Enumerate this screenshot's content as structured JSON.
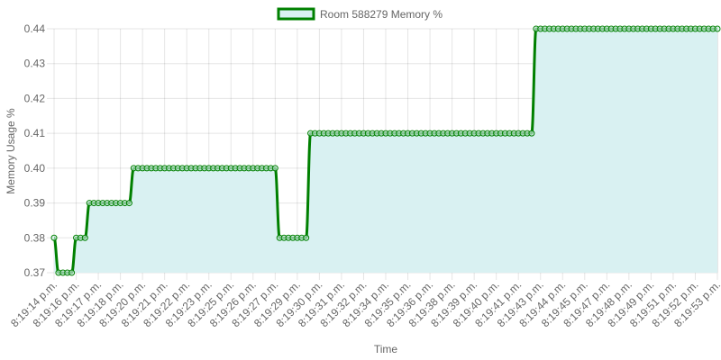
{
  "chart_data": {
    "type": "line",
    "title": "",
    "legend": {
      "label": "Room 588279 Memory %",
      "position": "top"
    },
    "xlabel": "Time",
    "ylabel": "Memory Usage %",
    "ylim": [
      0.37,
      0.44
    ],
    "yticks": [
      "0.37",
      "0.38",
      "0.39",
      "0.40",
      "0.41",
      "0.42",
      "0.43",
      "0.44"
    ],
    "grid": true,
    "x_tick_labels": [
      "8:19:14 p.m.",
      "8:19:16 p.m.",
      "8:19:17 p.m.",
      "8:19:18 p.m.",
      "8:19:20 p.m.",
      "8:19:21 p.m.",
      "8:19:22 p.m.",
      "8:19:23 p.m.",
      "8:19:25 p.m.",
      "8:19:26 p.m.",
      "8:19:27 p.m.",
      "8:19:29 p.m.",
      "8:19:30 p.m.",
      "8:19:31 p.m.",
      "8:19:32 p.m.",
      "8:19:34 p.m.",
      "8:19:35 p.m.",
      "8:19:36 p.m.",
      "8:19:38 p.m.",
      "8:19:39 p.m.",
      "8:19:40 p.m.",
      "8:19:41 p.m.",
      "8:19:43 p.m.",
      "8:19:44 p.m.",
      "8:19:45 p.m.",
      "8:19:47 p.m.",
      "8:19:48 p.m.",
      "8:19:49 p.m.",
      "8:19:51 p.m.",
      "8:19:52 p.m.",
      "8:19:53 p.m."
    ],
    "series": [
      {
        "name": "Room 588279 Memory %",
        "line_color": "#008000",
        "fill_color": "#d9f1f2",
        "value_runs": [
          [
            0.38,
            1
          ],
          [
            0.37,
            4
          ],
          [
            0.38,
            3
          ],
          [
            0.39,
            10
          ],
          [
            0.4,
            33
          ],
          [
            0.38,
            7
          ],
          [
            0.41,
            51
          ],
          [
            0.44,
            42
          ]
        ]
      }
    ]
  }
}
